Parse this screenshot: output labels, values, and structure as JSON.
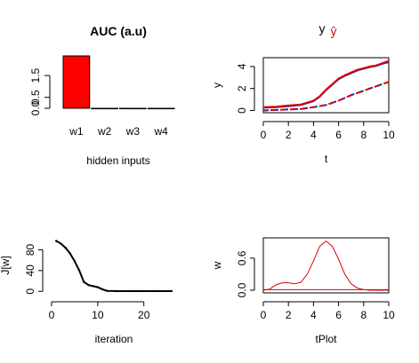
{
  "colors": {
    "bar_red": "#ff0000",
    "y_red": "#dd0000",
    "yhat_blue": "#1f2aa8",
    "w_red": "#dd0000",
    "axis": "#000000"
  },
  "chart_data": [
    {
      "id": "auc",
      "type": "bar",
      "title": "AUC (a.u)",
      "xlabel": "hidden inputs",
      "ylabel": "",
      "categories": [
        "w1",
        "w2",
        "w3",
        "w4"
      ],
      "values": [
        2.4,
        0.0,
        0.0,
        0.0
      ],
      "ylim": [
        0,
        2.4
      ],
      "yticks": [
        "0.0",
        "0.5",
        "1.5"
      ],
      "ytick_values": [
        0,
        0.5,
        1.5
      ]
    },
    {
      "id": "y",
      "type": "line",
      "legend": [
        "y",
        "ŷ"
      ],
      "xlabel": "t",
      "ylabel": "y",
      "xlim": [
        0,
        10
      ],
      "ylim": [
        -0.2,
        4.8
      ],
      "xticks": [
        "0",
        "2",
        "4",
        "6",
        "8",
        "10"
      ],
      "xtick_values": [
        0,
        2,
        4,
        6,
        8,
        10
      ],
      "yticks": [
        "0",
        "2",
        "4"
      ],
      "ytick_values": [
        0,
        2,
        4
      ],
      "series": [
        {
          "name": "y",
          "x": [
            0,
            1,
            2,
            3,
            4,
            4.5,
            5,
            5.5,
            6,
            6.5,
            7,
            7.5,
            8,
            8.5,
            9,
            9.5,
            10
          ],
          "values": [
            0.3,
            0.35,
            0.45,
            0.55,
            0.9,
            1.3,
            1.9,
            2.4,
            2.9,
            3.2,
            3.45,
            3.7,
            3.85,
            4.0,
            4.1,
            4.3,
            4.5
          ]
        },
        {
          "name": "y-solid-blue",
          "x": [
            0,
            1,
            2,
            3,
            4,
            4.5,
            5,
            5.5,
            6,
            6.5,
            7,
            7.5,
            8,
            8.5,
            9,
            9.5,
            10
          ],
          "values": [
            0.25,
            0.3,
            0.4,
            0.5,
            0.85,
            1.25,
            1.85,
            2.35,
            2.85,
            3.15,
            3.4,
            3.65,
            3.8,
            3.95,
            4.05,
            4.25,
            4.4
          ]
        },
        {
          "name": "yhat",
          "x": [
            0,
            1,
            2,
            3,
            4,
            5,
            6,
            7,
            8,
            9,
            10
          ],
          "values": [
            0.0,
            0.05,
            0.1,
            0.15,
            0.3,
            0.5,
            0.9,
            1.4,
            1.8,
            2.2,
            2.6
          ]
        }
      ]
    },
    {
      "id": "cost",
      "type": "line",
      "xlabel": "iteration",
      "ylabel": "J[w]",
      "xlim": [
        0,
        27
      ],
      "ylim": [
        -3,
        103
      ],
      "xticks": [
        "0",
        "10",
        "20"
      ],
      "xtick_values": [
        0,
        10,
        20
      ],
      "yticks": [
        "0",
        "40",
        "80"
      ],
      "ytick_values": [
        0,
        40,
        80
      ],
      "series": [
        {
          "name": "J",
          "x": [
            1,
            2,
            3,
            4,
            5,
            6,
            7,
            8,
            9,
            10,
            11,
            12,
            14,
            17,
            20,
            23,
            26
          ],
          "values": [
            97,
            92,
            84,
            73,
            58,
            40,
            18,
            12,
            10,
            8,
            4,
            1,
            0.5,
            0.5,
            0.5,
            0.5,
            0.5
          ]
        }
      ]
    },
    {
      "id": "w",
      "type": "line",
      "xlabel": "tPlot",
      "ylabel": "w",
      "xlim": [
        0,
        10
      ],
      "ylim": [
        -0.05,
        0.98
      ],
      "xticks": [
        "0",
        "2",
        "4",
        "6",
        "8",
        "10"
      ],
      "xtick_values": [
        0,
        2,
        4,
        6,
        8,
        10
      ],
      "yticks": [
        "0.0",
        "0.6"
      ],
      "ytick_values": [
        0,
        0.6
      ],
      "series": [
        {
          "name": "w1",
          "x": [
            0,
            0.5,
            1,
            1.5,
            2,
            2.5,
            3,
            3.5,
            4,
            4.5,
            5,
            5.5,
            6,
            6.5,
            7,
            7.5,
            8,
            8.5,
            9,
            9.5,
            10
          ],
          "values": [
            0.0,
            0.02,
            0.1,
            0.14,
            0.14,
            0.12,
            0.15,
            0.3,
            0.55,
            0.82,
            0.92,
            0.82,
            0.58,
            0.3,
            0.12,
            0.04,
            0.01,
            0.0,
            0.0,
            0.0,
            0.0
          ]
        },
        {
          "name": "w2",
          "x": [
            0,
            10
          ],
          "values": [
            0.01,
            0.01
          ]
        }
      ]
    }
  ]
}
